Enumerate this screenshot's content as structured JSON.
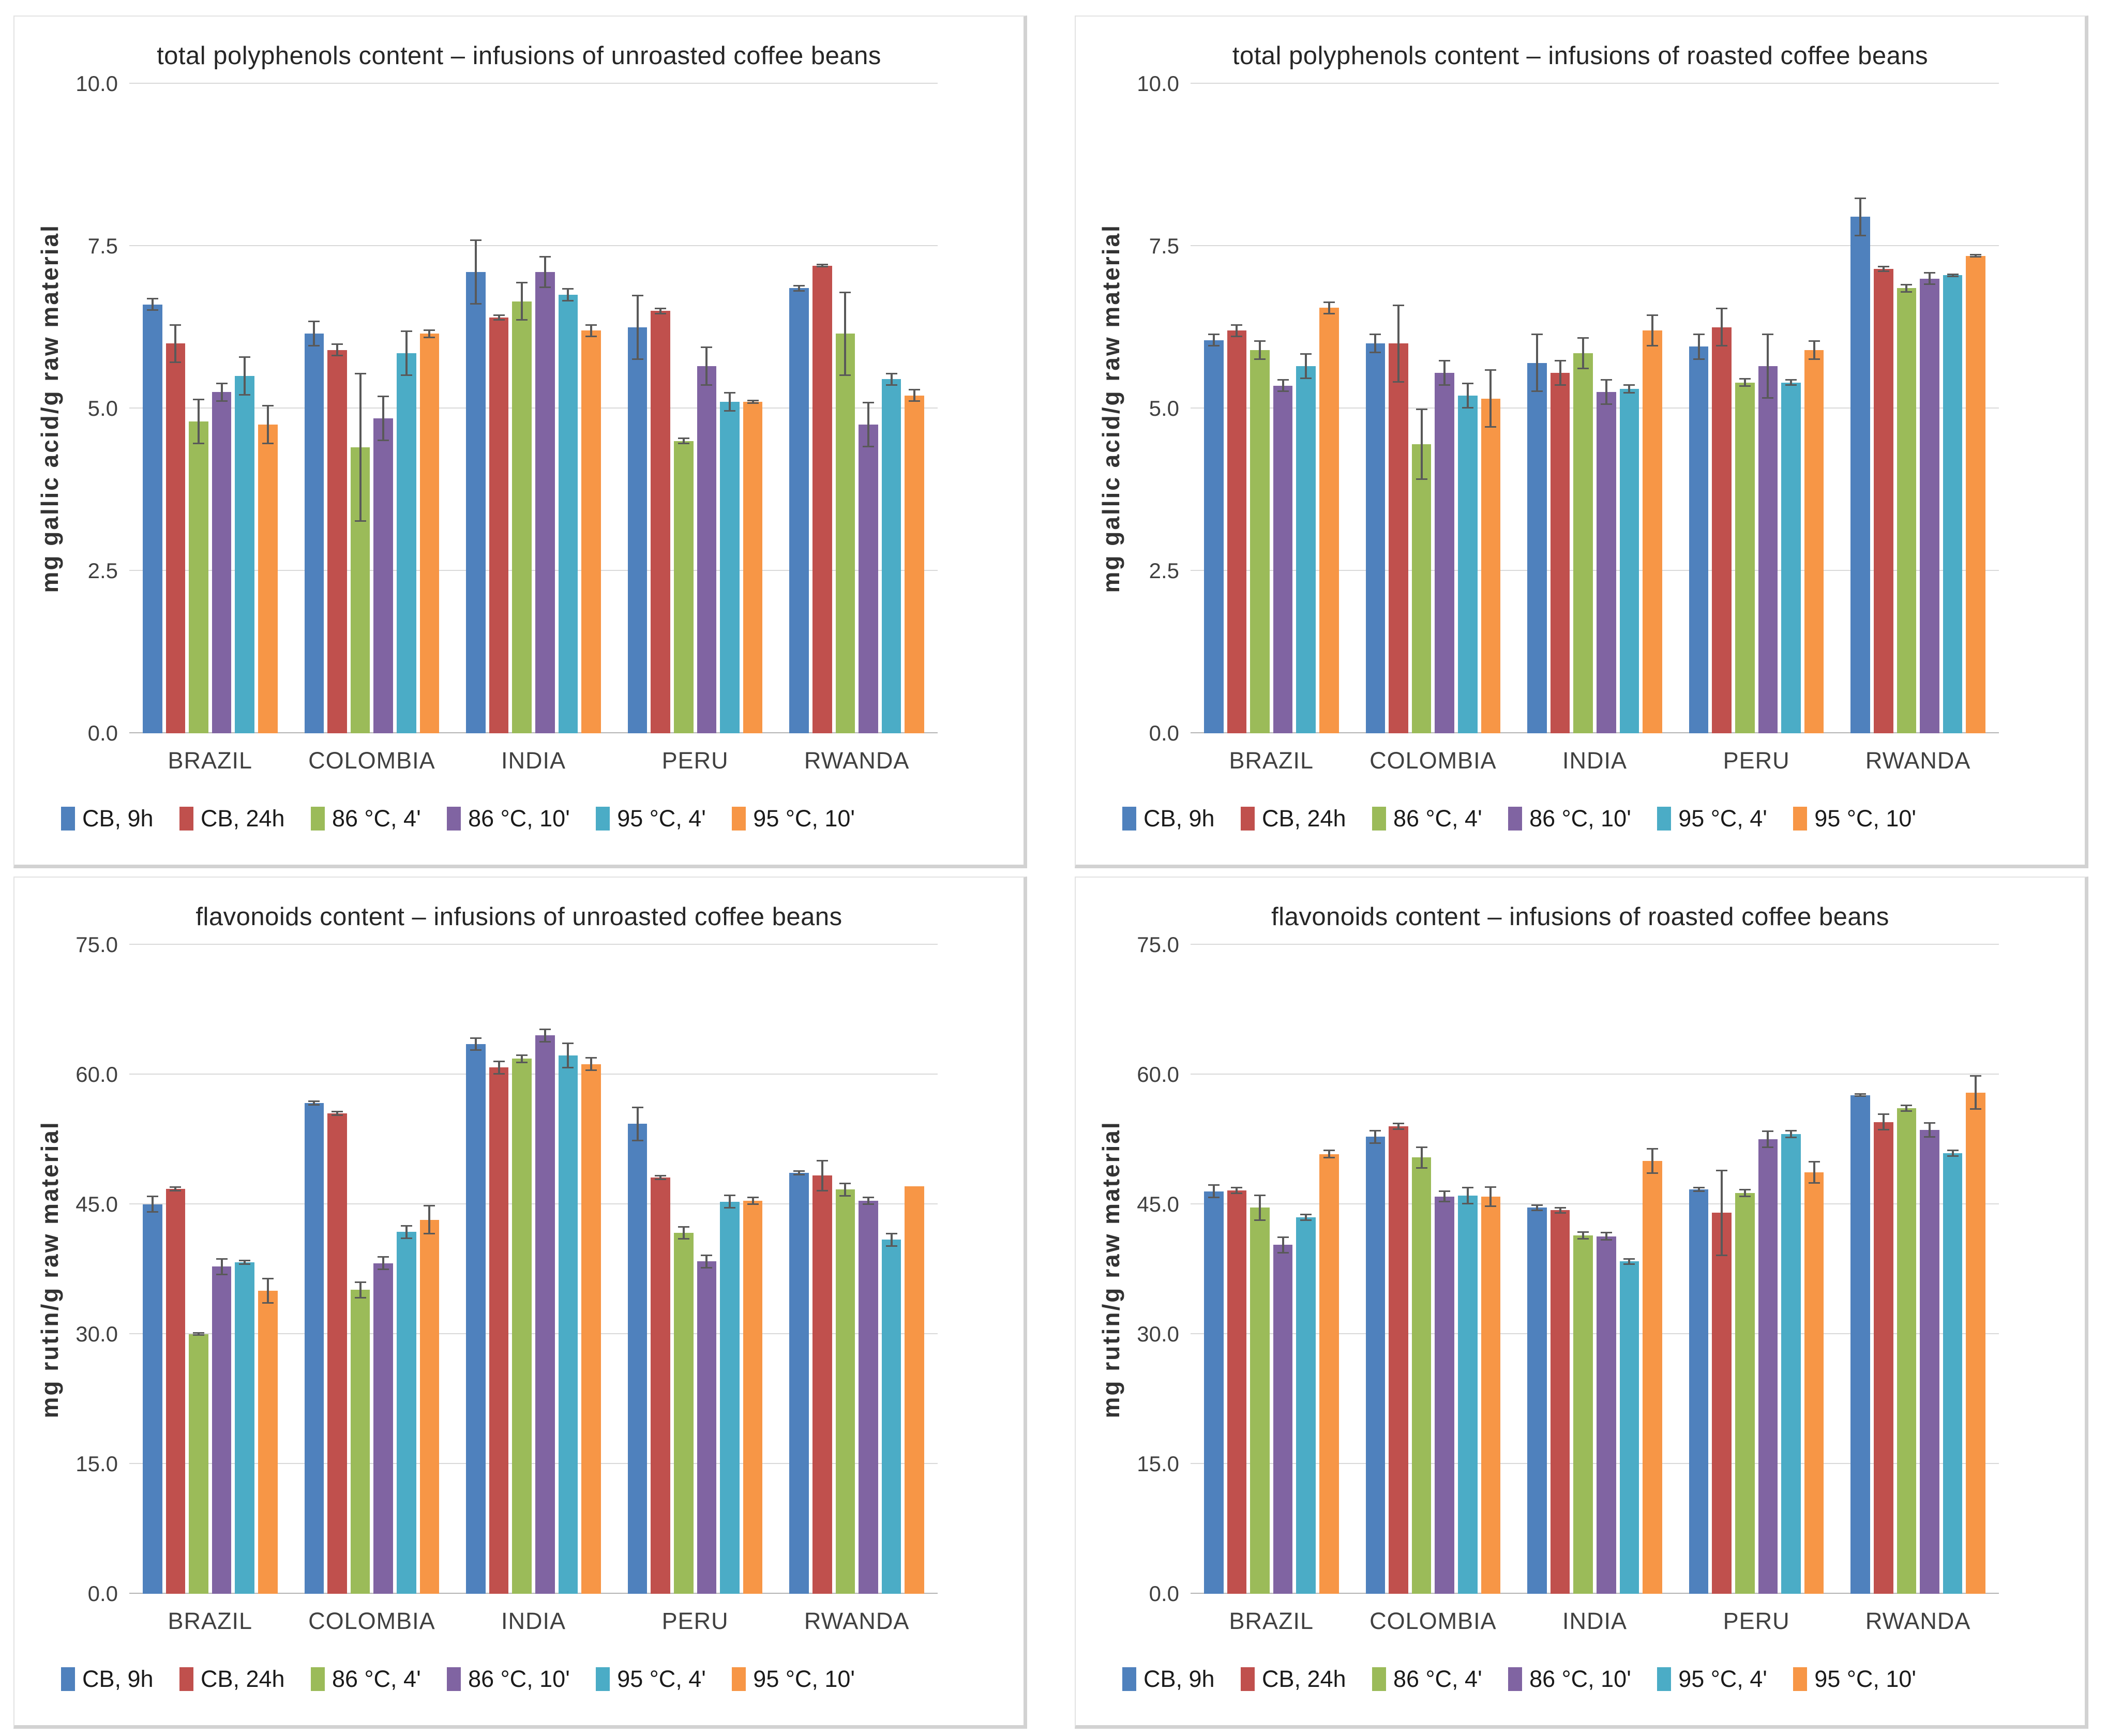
{
  "style": {
    "grid_color": "#d9d9d9",
    "axis_color": "#b3b3b3",
    "error_color": "#595959",
    "panel_border": "#e2e2e2",
    "panel_border_thick": "#d2d2d2",
    "text_color": "#404040",
    "title_color": "#262626"
  },
  "chart_data": [
    {
      "type": "bar",
      "title": "total polyphenols content – infusions of unroasted coffee beans",
      "ylabel": "mg gallic acid/g raw material",
      "ylim": [
        0,
        10
      ],
      "grid": true,
      "legend_position": "bottom",
      "yticks": [
        {
          "v": 0,
          "label": "0.0"
        },
        {
          "v": 2.5,
          "label": "2.5"
        },
        {
          "v": 5,
          "label": "5.0"
        },
        {
          "v": 7.5,
          "label": "7.5"
        },
        {
          "v": 10,
          "label": "10.0"
        }
      ],
      "categories": [
        "BRAZIL",
        "COLOMBIA",
        "INDIA",
        "PERU",
        "RWANDA"
      ],
      "series": [
        {
          "name": "CB, 9h",
          "color": "#4F81BD",
          "values": [
            6.6,
            6.15,
            7.1,
            6.25,
            6.85
          ],
          "errors": [
            0.1,
            0.2,
            0.5,
            0.5,
            0.05
          ]
        },
        {
          "name": "CB, 24h",
          "color": "#C0504D",
          "values": [
            6.0,
            5.9,
            6.4,
            6.5,
            7.2
          ],
          "errors": [
            0.3,
            0.1,
            0.05,
            0.05,
            0.03
          ]
        },
        {
          "name": "86 °C, 4'",
          "color": "#9BBB59",
          "values": [
            4.8,
            4.4,
            6.65,
            4.5,
            6.15
          ],
          "errors": [
            0.35,
            1.15,
            0.3,
            0.05,
            0.65
          ]
        },
        {
          "name": "86 °C, 10'",
          "color": "#8064A2",
          "values": [
            5.25,
            4.85,
            7.1,
            5.65,
            4.75
          ],
          "errors": [
            0.15,
            0.35,
            0.25,
            0.3,
            0.35
          ]
        },
        {
          "name": "95 °C, 4'",
          "color": "#4BACC6",
          "values": [
            5.5,
            5.85,
            6.75,
            5.1,
            5.45
          ],
          "errors": [
            0.3,
            0.35,
            0.1,
            0.15,
            0.1
          ]
        },
        {
          "name": "95 °C, 10'",
          "color": "#F79646",
          "values": [
            4.75,
            6.15,
            6.2,
            5.1,
            5.2
          ],
          "errors": [
            0.3,
            0.07,
            0.1,
            0.03,
            0.1
          ]
        }
      ]
    },
    {
      "type": "bar",
      "title": "total polyphenols content – infusions of roasted coffee beans",
      "ylabel": "mg gallic acid/g raw material",
      "ylim": [
        0,
        10
      ],
      "grid": true,
      "legend_position": "bottom",
      "yticks": [
        {
          "v": 0,
          "label": "0.0"
        },
        {
          "v": 2.5,
          "label": "2.5"
        },
        {
          "v": 5,
          "label": "5.0"
        },
        {
          "v": 7.5,
          "label": "7.5"
        },
        {
          "v": 10,
          "label": "10.0"
        }
      ],
      "categories": [
        "BRAZIL",
        "COLOMBIA",
        "INDIA",
        "PERU",
        "RWANDA"
      ],
      "series": [
        {
          "name": "CB, 9h",
          "color": "#4F81BD",
          "values": [
            6.05,
            6.0,
            5.7,
            5.95,
            7.95
          ],
          "errors": [
            0.1,
            0.15,
            0.45,
            0.2,
            0.3
          ]
        },
        {
          "name": "CB, 24h",
          "color": "#C0504D",
          "values": [
            6.2,
            6.0,
            5.55,
            6.25,
            7.15
          ],
          "errors": [
            0.1,
            0.6,
            0.2,
            0.3,
            0.05
          ]
        },
        {
          "name": "86 °C, 4'",
          "color": "#9BBB59",
          "values": [
            5.9,
            4.45,
            5.85,
            5.4,
            6.85
          ],
          "errors": [
            0.15,
            0.55,
            0.25,
            0.07,
            0.07
          ]
        },
        {
          "name": "86 °C, 10'",
          "color": "#8064A2",
          "values": [
            5.35,
            5.55,
            5.25,
            5.65,
            7.0
          ],
          "errors": [
            0.1,
            0.2,
            0.2,
            0.5,
            0.1
          ]
        },
        {
          "name": "95 °C, 4'",
          "color": "#4BACC6",
          "values": [
            5.65,
            5.2,
            5.3,
            5.4,
            7.05
          ],
          "errors": [
            0.2,
            0.2,
            0.07,
            0.05,
            0.03
          ]
        },
        {
          "name": "95 °C, 10'",
          "color": "#F79646",
          "values": [
            6.55,
            5.15,
            6.2,
            5.9,
            7.35
          ],
          "errors": [
            0.1,
            0.45,
            0.25,
            0.15,
            0.03
          ]
        }
      ]
    },
    {
      "type": "bar",
      "title": "flavonoids content – infusions of unroasted coffee beans",
      "ylabel": "mg rutin/g raw material",
      "ylim": [
        0,
        75
      ],
      "grid": true,
      "legend_position": "bottom",
      "yticks": [
        {
          "v": 0,
          "label": "0.0"
        },
        {
          "v": 15,
          "label": "15.0"
        },
        {
          "v": 30,
          "label": "30.0"
        },
        {
          "v": 45,
          "label": "45.0"
        },
        {
          "v": 60,
          "label": "60.0"
        },
        {
          "v": 75,
          "label": "75.0"
        }
      ],
      "categories": [
        "BRAZIL",
        "COLOMBIA",
        "INDIA",
        "PERU",
        "RWANDA"
      ],
      "series": [
        {
          "name": "CB, 9h",
          "color": "#4F81BD",
          "values": [
            45.0,
            56.7,
            63.5,
            54.3,
            48.6
          ],
          "errors": [
            1.0,
            0.3,
            0.8,
            2.0,
            0.3
          ]
        },
        {
          "name": "CB, 24h",
          "color": "#C0504D",
          "values": [
            46.8,
            55.5,
            60.8,
            48.1,
            48.3
          ],
          "errors": [
            0.3,
            0.3,
            0.8,
            0.3,
            1.8
          ]
        },
        {
          "name": "86 °C, 4'",
          "color": "#9BBB59",
          "values": [
            30.0,
            35.1,
            61.8,
            41.7,
            46.7
          ],
          "errors": [
            0.2,
            1.0,
            0.5,
            0.8,
            0.8
          ]
        },
        {
          "name": "86 °C, 10'",
          "color": "#8064A2",
          "values": [
            37.8,
            38.2,
            64.5,
            38.4,
            45.4
          ],
          "errors": [
            1.0,
            0.8,
            0.8,
            0.8,
            0.5
          ]
        },
        {
          "name": "95 °C, 4'",
          "color": "#4BACC6",
          "values": [
            38.3,
            41.8,
            62.2,
            45.3,
            40.9
          ],
          "errors": [
            0.3,
            0.8,
            1.5,
            0.8,
            0.8
          ]
        },
        {
          "name": "95 °C, 10'",
          "color": "#F79646",
          "values": [
            35.0,
            43.2,
            61.2,
            45.4,
            47.1
          ],
          "errors": [
            1.5,
            1.7,
            0.8,
            0.5,
            0.0
          ]
        }
      ]
    },
    {
      "type": "bar",
      "title": "flavonoids content – infusions of roasted coffee beans",
      "ylabel": "mg rutin/g raw material",
      "ylim": [
        0,
        75
      ],
      "grid": true,
      "legend_position": "bottom",
      "yticks": [
        {
          "v": 0,
          "label": "0.0"
        },
        {
          "v": 15,
          "label": "15.0"
        },
        {
          "v": 30,
          "label": "30.0"
        },
        {
          "v": 45,
          "label": "45.0"
        },
        {
          "v": 60,
          "label": "60.0"
        },
        {
          "v": 75,
          "label": "75.0"
        }
      ],
      "categories": [
        "BRAZIL",
        "COLOMBIA",
        "INDIA",
        "PERU",
        "RWANDA"
      ],
      "series": [
        {
          "name": "CB, 9h",
          "color": "#4F81BD",
          "values": [
            46.5,
            52.8,
            44.6,
            46.7,
            57.6
          ],
          "errors": [
            0.8,
            0.8,
            0.4,
            0.3,
            0.2
          ]
        },
        {
          "name": "CB, 24h",
          "color": "#C0504D",
          "values": [
            46.6,
            54.0,
            44.3,
            44.0,
            54.5
          ],
          "errors": [
            0.4,
            0.4,
            0.4,
            5.0,
            1.0
          ]
        },
        {
          "name": "86 °C, 4'",
          "color": "#9BBB59",
          "values": [
            44.6,
            50.4,
            41.4,
            46.3,
            56.1
          ],
          "errors": [
            1.5,
            1.3,
            0.5,
            0.5,
            0.4
          ]
        },
        {
          "name": "86 °C, 10'",
          "color": "#8064A2",
          "values": [
            40.3,
            45.9,
            41.3,
            52.5,
            53.6
          ],
          "errors": [
            1.0,
            0.7,
            0.5,
            1.0,
            0.9
          ]
        },
        {
          "name": "95 °C, 4'",
          "color": "#4BACC6",
          "values": [
            43.5,
            46.0,
            38.4,
            53.1,
            50.9
          ],
          "errors": [
            0.4,
            1.0,
            0.4,
            0.5,
            0.4
          ]
        },
        {
          "name": "95 °C, 10'",
          "color": "#F79646",
          "values": [
            50.8,
            45.9,
            50.0,
            48.7,
            57.9
          ],
          "errors": [
            0.5,
            1.2,
            1.5,
            1.3,
            2.0
          ]
        }
      ]
    }
  ]
}
